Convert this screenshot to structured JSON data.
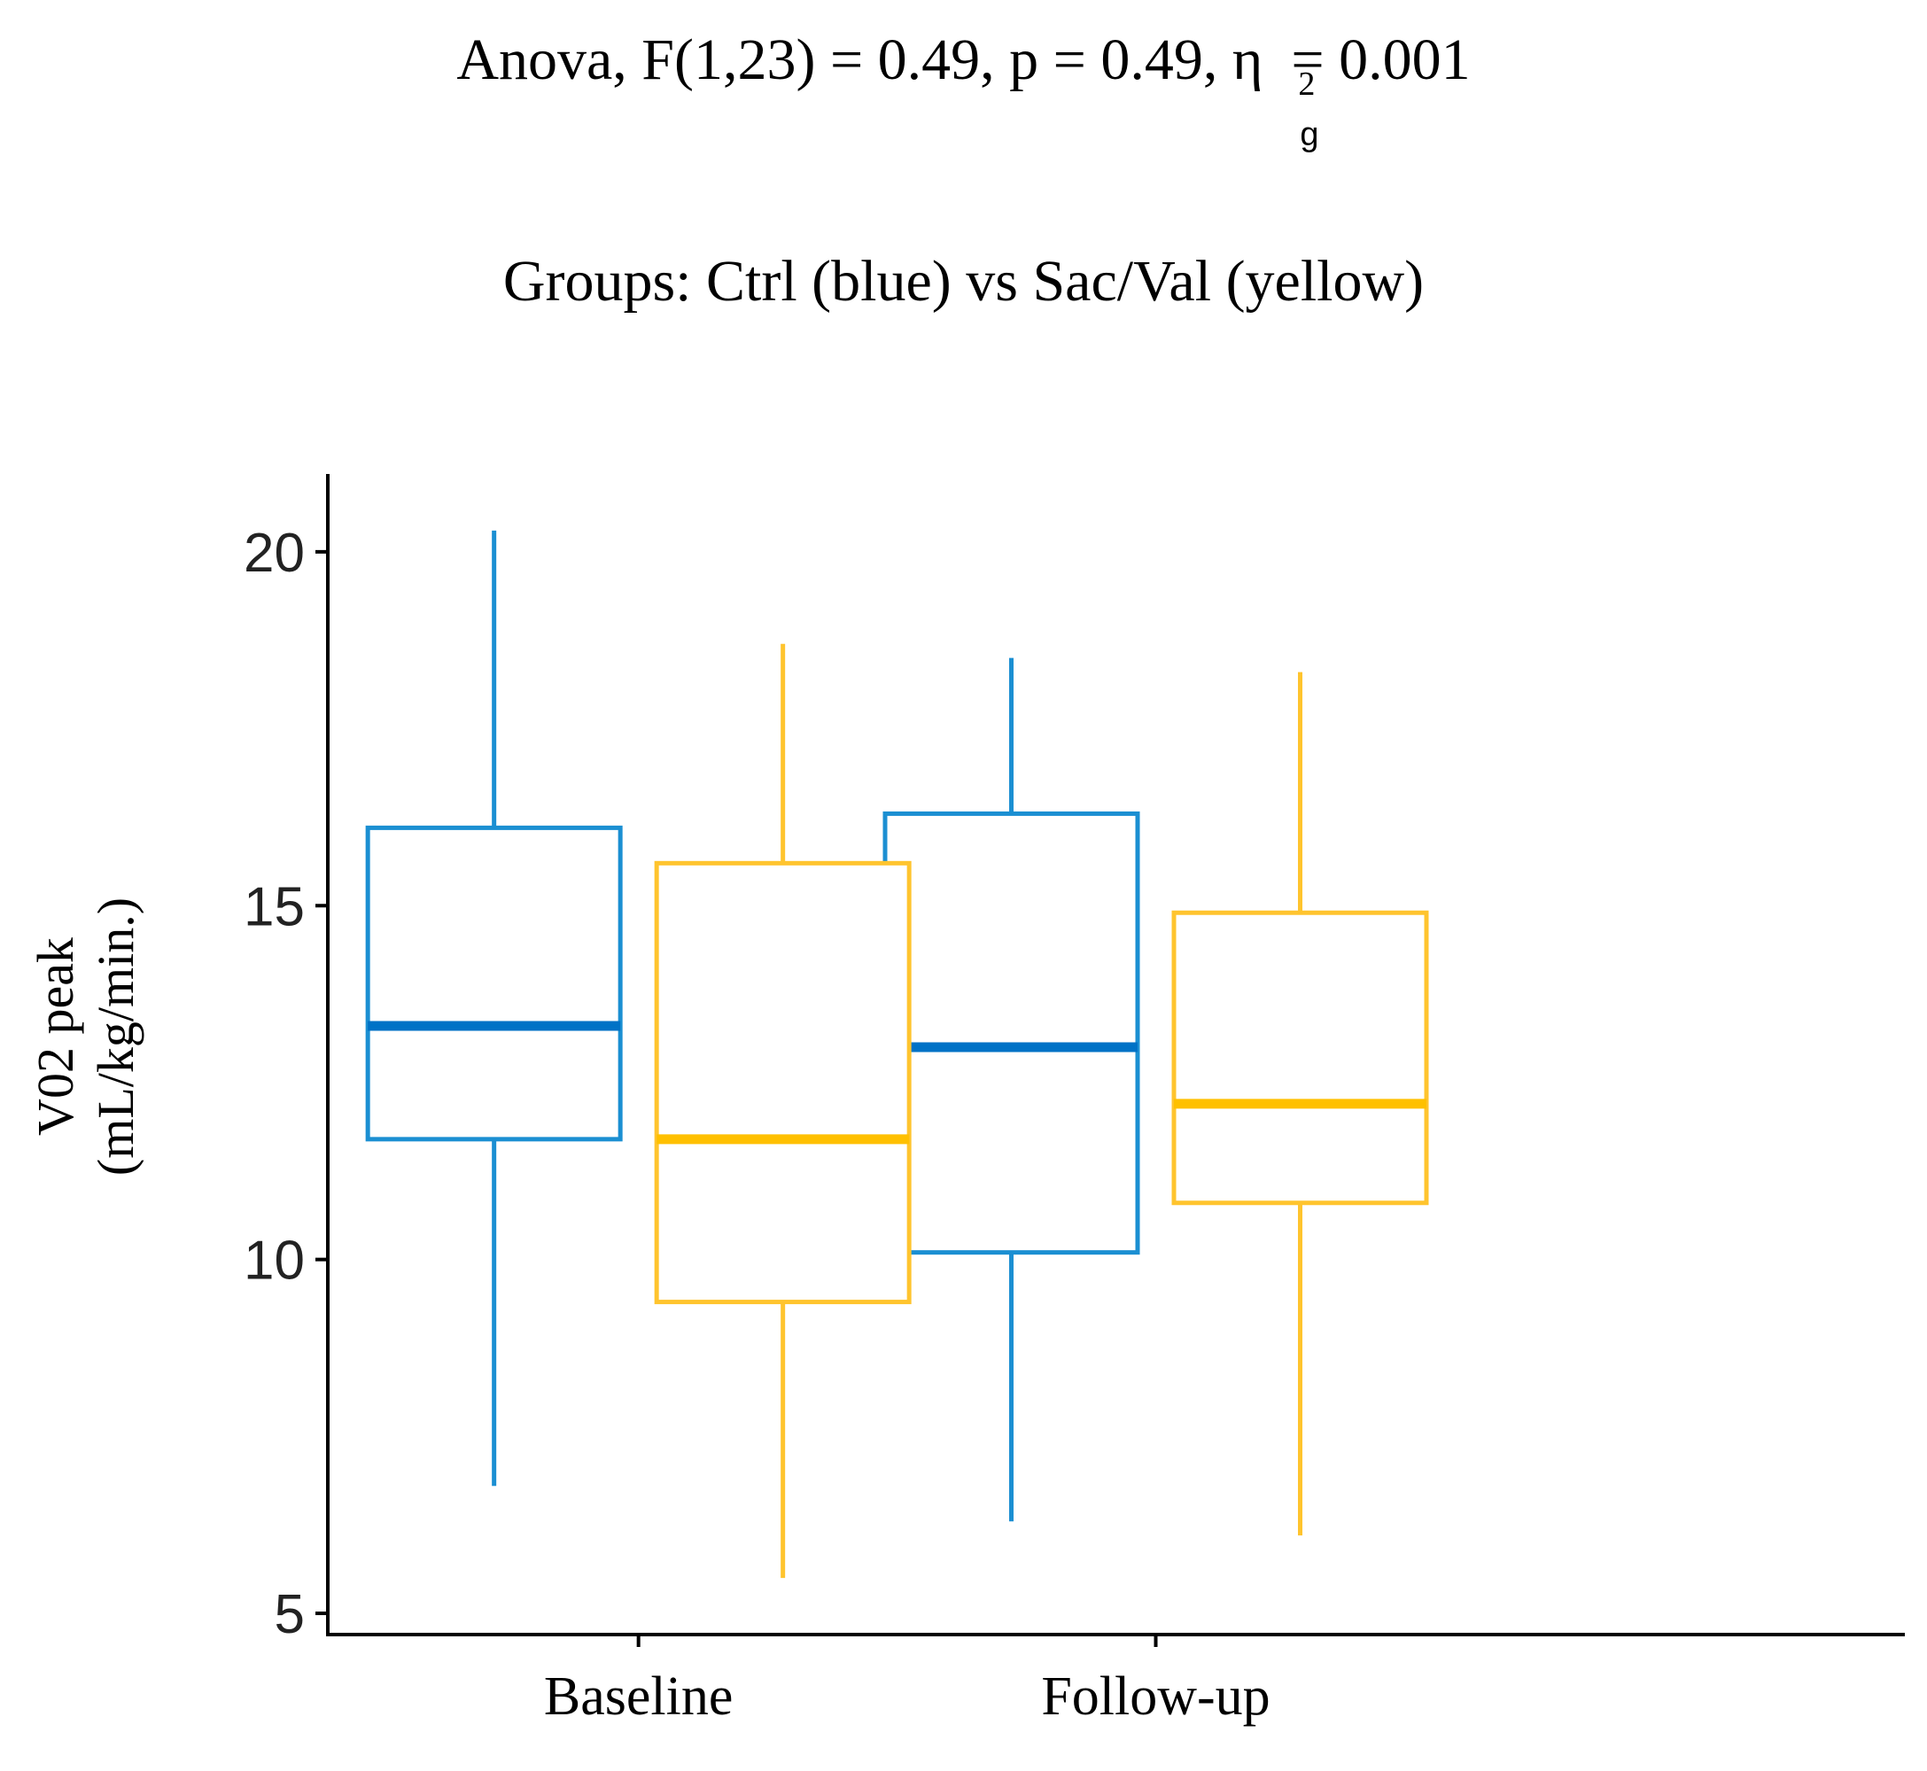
{
  "chart_data": {
    "type": "boxplot",
    "title": "Anova, F(1,23) = 0.49, p = 0.49, η",
    "title_eta_superscript": "2",
    "title_eta_subscript": "g",
    "title_suffix": "= 0.001",
    "subtitle": "Groups: Ctrl (blue) vs Sac/Val (yellow)",
    "ylabel_line1": "V02 peak",
    "ylabel_line2": "(mL/kg/min.)",
    "xlabel": "",
    "ylim": [
      4.7,
      21.1
    ],
    "yticks": [
      "5",
      "10",
      "15",
      "20"
    ],
    "ytick_values": [
      5,
      10,
      15,
      20
    ],
    "categories": [
      "Baseline",
      "Follow-up"
    ],
    "series": [
      {
        "name": "Ctrl",
        "color": "#1B8FD2",
        "median_color": "#0072C6",
        "boxes": [
          {
            "min": 6.8,
            "q1": 11.7,
            "median": 13.3,
            "q3": 16.1,
            "max": 20.3
          },
          {
            "min": 6.3,
            "q1": 10.1,
            "median": 13.0,
            "q3": 16.3,
            "max": 18.5
          }
        ]
      },
      {
        "name": "Sac/Val",
        "color": "#FFC42E",
        "median_color": "#FFC000",
        "boxes": [
          {
            "min": 5.5,
            "q1": 9.4,
            "median": 11.7,
            "q3": 15.6,
            "max": 18.7
          },
          {
            "min": 6.1,
            "q1": 10.8,
            "median": 12.2,
            "q3": 14.9,
            "max": 18.3
          }
        ]
      }
    ],
    "axis_color": "#000000"
  }
}
